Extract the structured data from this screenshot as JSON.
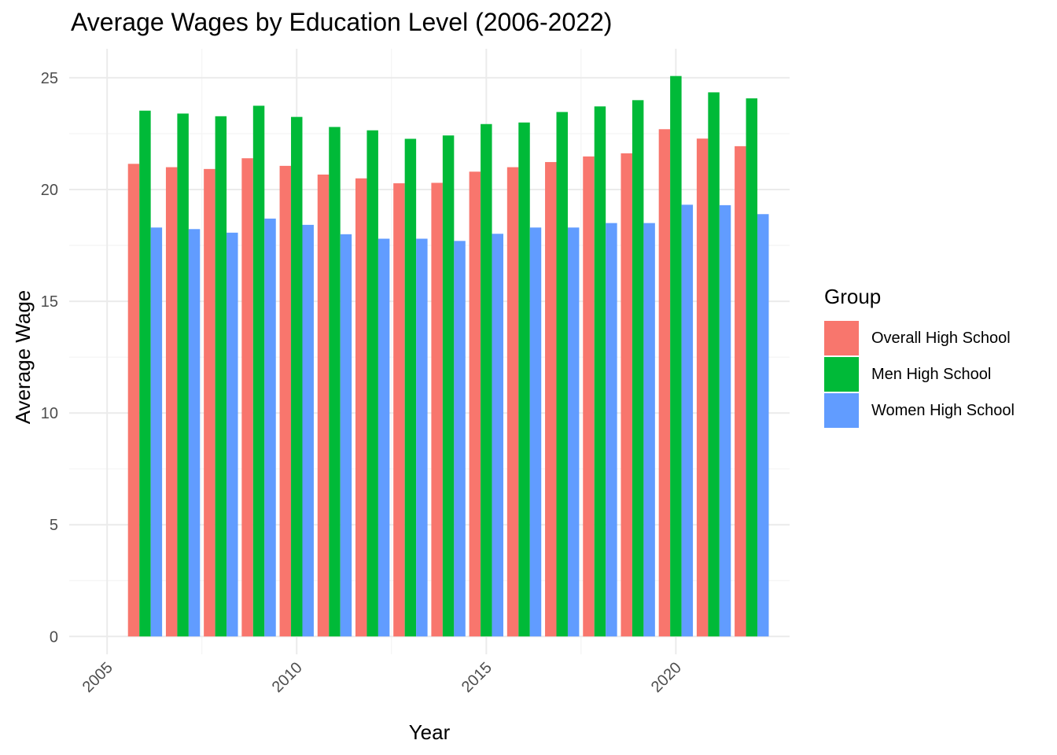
{
  "title": "Average Wages by Education Level (2006-2022)",
  "chart_data": {
    "type": "bar",
    "title": "Average Wages by Education Level (2006-2022)",
    "xlabel": "Year",
    "ylabel": "Average Wage",
    "categories": [
      2006,
      2007,
      2008,
      2009,
      2010,
      2011,
      2012,
      2013,
      2014,
      2015,
      2016,
      2017,
      2018,
      2019,
      2020,
      2021,
      2022
    ],
    "xlim": [
      2004,
      2023
    ],
    "ylim": [
      -0.8,
      26.3
    ],
    "x_ticks": [
      2005,
      2010,
      2015,
      2020
    ],
    "y_ticks": [
      0,
      5,
      10,
      15,
      20,
      25
    ],
    "grid": true,
    "legend_title": "Group",
    "legend_position": "right",
    "series": [
      {
        "name": "Overall High School",
        "color": "#F8766D",
        "values": [
          21.15,
          21.0,
          20.92,
          21.4,
          21.06,
          20.67,
          20.5,
          20.28,
          20.3,
          20.8,
          21.0,
          21.23,
          21.48,
          21.62,
          22.7,
          22.28,
          21.94
        ]
      },
      {
        "name": "Men High School",
        "color": "#00BA38",
        "values": [
          23.53,
          23.4,
          23.28,
          23.75,
          23.25,
          22.8,
          22.65,
          22.27,
          22.42,
          22.93,
          23.0,
          23.47,
          23.72,
          24.0,
          25.08,
          24.35,
          24.08
        ]
      },
      {
        "name": "Women High School",
        "color": "#619CFF",
        "values": [
          18.3,
          18.23,
          18.07,
          18.7,
          18.42,
          18.0,
          17.8,
          17.8,
          17.7,
          18.02,
          18.3,
          18.3,
          18.5,
          18.5,
          19.32,
          19.3,
          18.9
        ]
      }
    ]
  }
}
